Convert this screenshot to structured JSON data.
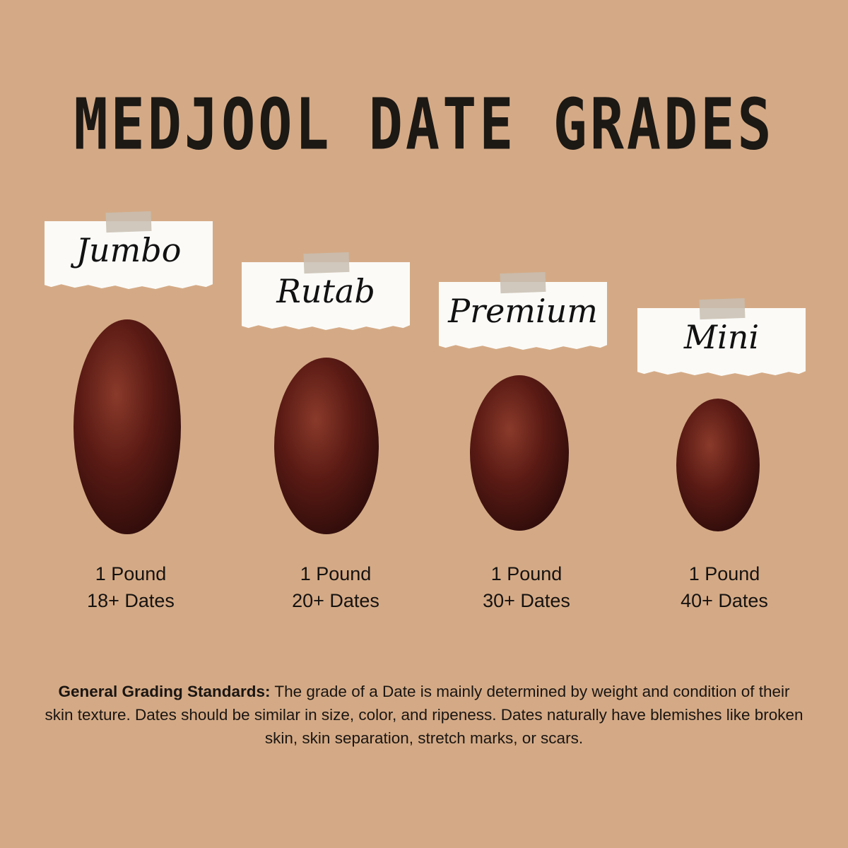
{
  "title": "MEDJOOL DATE GRADES",
  "grades": [
    {
      "name": "Jumbo",
      "weight": "1 Pound",
      "count": "18+ Dates"
    },
    {
      "name": "Rutab",
      "weight": "1 Pound",
      "count": "20+ Dates"
    },
    {
      "name": "Premium",
      "weight": "1 Pound",
      "count": "30+ Dates"
    },
    {
      "name": "Mini",
      "weight": "1 Pound",
      "count": "40+ Dates"
    }
  ],
  "footer": {
    "label": "General Grading Standards:",
    "text": " The grade of a Date is mainly determined by weight and condition of their skin texture. Dates should be similar in size, color, and ripeness. Dates naturally have blemishes like broken skin, skin separation, stretch marks, or scars."
  },
  "colors": {
    "background": "#d4aa86",
    "date": "#5a1a14"
  }
}
